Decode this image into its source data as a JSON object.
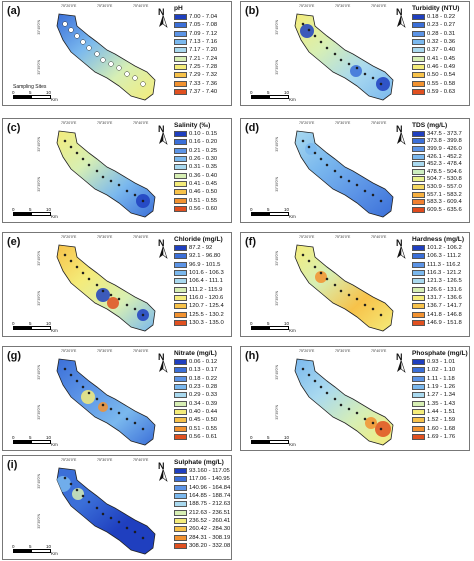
{
  "coordinates": {
    "lon1": "75°20'0\"E",
    "lon2": "75°30'0\"E",
    "lon3": "75°40'0\"E",
    "lat1": "33°40'0\"N",
    "lat2": "33°30'0\"N"
  },
  "north_label": "N",
  "scale_labels": {
    "zero": "0",
    "five": "5",
    "ten": "10",
    "unit": "Km"
  },
  "sampling_sites_label": "Sampling Sites",
  "panels": [
    {
      "letter": "(a)",
      "title": "pH",
      "items": [
        "7.00 - 7.04",
        "7.05 - 7.08",
        "7.09 - 7.12",
        "7.13 - 7.16",
        "7.17 - 7.20",
        "7.21 - 7.24",
        "7.25 - 7.28",
        "7.29 - 7.32",
        "7.33 - 7.36",
        "7.37 - 7.40"
      ],
      "colors": [
        "#1f3fbf",
        "#3b6fd8",
        "#5c94e6",
        "#7ab8ee",
        "#a9d9ef",
        "#d7efb4",
        "#f4ec7a",
        "#f7c24a",
        "#f29230",
        "#e05020"
      ]
    },
    {
      "letter": "(b)",
      "title": "Turbidity (NTU)",
      "items": [
        "0.18 - 0.22",
        "0.23 - 0.27",
        "0.28 - 0.31",
        "0.32 - 0.36",
        "0.37 - 0.40",
        "0.41 - 0.45",
        "0.46 - 0.49",
        "0.50 - 0.54",
        "0.55 - 0.58",
        "0.59 - 0.63"
      ],
      "colors": [
        "#1f3fbf",
        "#3b6fd8",
        "#5c94e6",
        "#7ab8ee",
        "#a9d9ef",
        "#d7efb4",
        "#f4ec7a",
        "#f7c24a",
        "#f29230",
        "#e05020"
      ]
    },
    {
      "letter": "(c)",
      "title": "Salinity (‰)",
      "items": [
        "0.10 - 0.15",
        "0.16 - 0.20",
        "0.21 - 0.25",
        "0.26 - 0.30",
        "0.31 - 0.35",
        "0.36 - 0.40",
        "0.41 - 0.45",
        "0.46 - 0.50",
        "0.51 - 0.55",
        "0.56 - 0.60"
      ],
      "colors": [
        "#1f3fbf",
        "#3b6fd8",
        "#5c94e6",
        "#7ab8ee",
        "#a9d9ef",
        "#d7efb4",
        "#f4ec7a",
        "#f7c24a",
        "#f29230",
        "#e05020"
      ]
    },
    {
      "letter": "(d)",
      "title": "TDS (mg/L)",
      "items": [
        "347.5 - 373.7",
        "373.8 - 399.8",
        "399.9 - 426.0",
        "426.1 - 452.2",
        "452.3 - 478.4",
        "478.5 - 504.6",
        "504.7 - 530.8",
        "530.9 - 557.0",
        "557.1 - 583.2",
        "583.3 - 609.4",
        "609.5 - 635.6"
      ],
      "colors": [
        "#1f3fbf",
        "#3b6fd8",
        "#5c94e6",
        "#7ab8ee",
        "#a9d9ef",
        "#cdeec0",
        "#e8f28e",
        "#f4d860",
        "#f7b040",
        "#f08030",
        "#e04a1c"
      ]
    },
    {
      "letter": "(e)",
      "title": "Chloride (mg/L)",
      "items": [
        "87.2 - 92",
        "92.1 - 96.80",
        "96.9 - 101.5",
        "101.6 - 106.3",
        "106.4 - 111.1",
        "111.2 - 115.9",
        "116.0 - 120.6",
        "120.7 - 125.4",
        "125.5 - 130.2",
        "130.3 - 135.0"
      ],
      "colors": [
        "#1f3fbf",
        "#3b6fd8",
        "#5c94e6",
        "#7ab8ee",
        "#a9d9ef",
        "#d7efb4",
        "#f4ec7a",
        "#f7c24a",
        "#f29230",
        "#e05020"
      ]
    },
    {
      "letter": "(f)",
      "title": "Hardness (mg/L)",
      "items": [
        "101.2 - 106.2",
        "106.3 - 111.2",
        "111.3 - 116.2",
        "116.3 - 121.2",
        "121.3 - 126.5",
        "126.6 - 131.6",
        "131.7 - 136.6",
        "136.7 - 141.7",
        "141.8 - 146.8",
        "146.9 - 151.8"
      ],
      "colors": [
        "#1f3fbf",
        "#3b6fd8",
        "#5c94e6",
        "#7ab8ee",
        "#a9d9ef",
        "#d7efb4",
        "#f4ec7a",
        "#f7c24a",
        "#f29230",
        "#e05020"
      ]
    },
    {
      "letter": "(g)",
      "title": "Nitrate (mg/L)",
      "items": [
        "0.06 - 0.12",
        "0.13 - 0.17",
        "0.18 - 0.22",
        "0.23 - 0.28",
        "0.29 - 0.33",
        "0.34 - 0.39",
        "0.40 - 0.44",
        "0.45 - 0.50",
        "0.51 - 0.55",
        "0.56 - 0.61"
      ],
      "colors": [
        "#1f3fbf",
        "#3b6fd8",
        "#5c94e6",
        "#7ab8ee",
        "#a9d9ef",
        "#d7efb4",
        "#f4ec7a",
        "#f7c24a",
        "#f29230",
        "#e05020"
      ]
    },
    {
      "letter": "(h)",
      "title": "Phosphate (mg/L)",
      "items": [
        "0.93 - 1.01",
        "1.02 - 1.10",
        "1.11 - 1.18",
        "1.19 - 1.26",
        "1.27 - 1.34",
        "1.35 - 1.43",
        "1.44 - 1.51",
        "1.52 - 1.59",
        "1.60 - 1.68",
        "1.69 - 1.76"
      ],
      "colors": [
        "#1f3fbf",
        "#3b6fd8",
        "#5c94e6",
        "#7ab8ee",
        "#a9d9ef",
        "#d7efb4",
        "#f4ec7a",
        "#f7c24a",
        "#f29230",
        "#e05020"
      ]
    },
    {
      "letter": "(i)",
      "title": "Sulphate (mg/L)",
      "items": [
        "93.160 - 117.05",
        "117.06 - 140.95",
        "140.96 - 164.84",
        "164.85 - 188.74",
        "188.75 - 212.63",
        "212.63 - 236.51",
        "236.52 - 260.41",
        "260.42 - 284.30",
        "284.31 - 308.19",
        "308.20 - 332.08"
      ],
      "colors": [
        "#1f3fbf",
        "#3b6fd8",
        "#5c94e6",
        "#7ab8ee",
        "#a9d9ef",
        "#d7efb4",
        "#f4ec7a",
        "#f7c24a",
        "#f29230",
        "#e05020"
      ]
    }
  ]
}
